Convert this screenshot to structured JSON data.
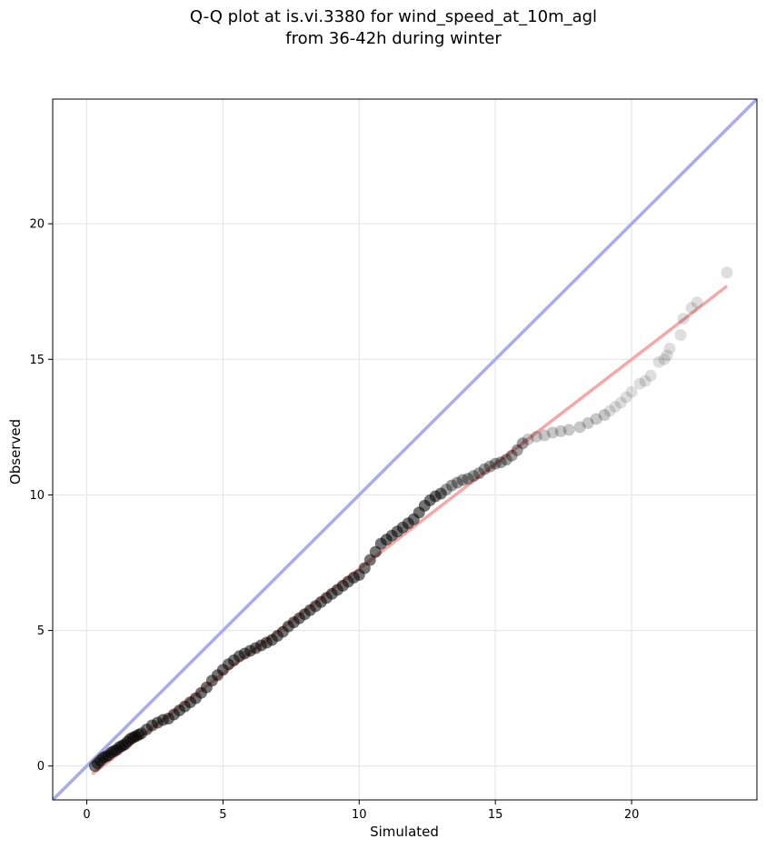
{
  "chart_data": {
    "type": "scatter",
    "title_line1": "Q-Q plot at is.vi.3380 for wind_speed_at_10m_agl",
    "title_line2": "from 36-42h during winter",
    "xlabel": "Simulated",
    "ylabel": "Observed",
    "xlim": [
      -1.25,
      24.6
    ],
    "ylim": [
      -1.25,
      24.6
    ],
    "xticks": [
      0,
      5,
      10,
      15,
      20
    ],
    "yticks": [
      0,
      5,
      10,
      15,
      20
    ],
    "grid": true,
    "identity_line": {
      "color": "#aaaaf2",
      "from": [
        -1.25,
        -1.25
      ],
      "to": [
        24.6,
        24.6
      ]
    },
    "fit_line": {
      "color": "#f5a8a8",
      "from": [
        0.2,
        -0.3
      ],
      "to": [
        23.5,
        17.7
      ]
    },
    "point_color": "#000000",
    "series": [
      {
        "x": [
          0.3,
          0.4,
          0.5,
          0.6,
          0.7,
          0.8,
          0.9,
          1.0,
          1.1,
          1.2,
          1.3,
          1.4,
          1.5,
          1.6,
          1.7,
          1.8,
          1.9,
          2.0,
          2.2,
          2.4,
          2.6,
          2.8,
          3.0,
          3.2,
          3.4,
          3.6,
          3.8,
          4.0,
          4.2,
          4.4,
          4.6,
          4.8,
          5.0,
          5.2,
          5.4,
          5.6,
          5.8,
          6.0,
          6.2,
          6.4,
          6.6,
          6.8,
          7.0,
          7.2,
          7.4,
          7.6,
          7.8,
          8.0,
          8.2,
          8.4,
          8.6,
          8.8,
          9.0,
          9.2,
          9.4,
          9.6,
          9.8,
          10.0,
          10.2,
          10.4,
          10.6,
          10.8,
          11.0,
          11.2,
          11.4,
          11.6,
          11.8,
          12.0,
          12.2,
          12.4,
          12.6,
          12.8,
          13.0,
          13.2,
          13.4,
          13.6,
          13.8,
          14.0,
          14.2,
          14.4,
          14.6,
          14.8,
          15.0,
          15.2,
          15.4,
          15.6,
          15.8,
          16.0,
          16.2,
          16.5,
          16.8,
          17.1,
          17.4,
          17.7,
          18.1,
          18.4,
          18.7,
          19.0,
          19.2,
          19.4,
          19.6,
          19.8,
          20.0,
          20.3,
          20.5,
          20.7,
          21.0,
          21.2,
          21.3,
          21.4,
          21.8,
          21.9,
          22.2,
          22.4,
          23.5
        ],
        "y": [
          0.0,
          0.1,
          0.2,
          0.3,
          0.35,
          0.4,
          0.5,
          0.55,
          0.6,
          0.7,
          0.75,
          0.8,
          0.9,
          1.0,
          1.05,
          1.1,
          1.15,
          1.2,
          1.35,
          1.5,
          1.6,
          1.7,
          1.75,
          1.9,
          2.05,
          2.2,
          2.35,
          2.5,
          2.7,
          2.9,
          3.15,
          3.35,
          3.55,
          3.75,
          3.9,
          4.05,
          4.15,
          4.25,
          4.35,
          4.45,
          4.55,
          4.65,
          4.8,
          4.95,
          5.15,
          5.3,
          5.45,
          5.6,
          5.75,
          5.9,
          6.05,
          6.2,
          6.35,
          6.5,
          6.65,
          6.8,
          6.95,
          7.05,
          7.3,
          7.6,
          7.9,
          8.2,
          8.35,
          8.5,
          8.65,
          8.8,
          8.95,
          9.1,
          9.35,
          9.6,
          9.8,
          9.95,
          10.05,
          10.2,
          10.35,
          10.45,
          10.55,
          10.6,
          10.7,
          10.8,
          10.95,
          11.05,
          11.15,
          11.2,
          11.3,
          11.45,
          11.65,
          11.9,
          12.05,
          12.15,
          12.2,
          12.3,
          12.35,
          12.4,
          12.5,
          12.65,
          12.8,
          12.95,
          13.1,
          13.25,
          13.4,
          13.6,
          13.8,
          14.1,
          14.2,
          14.4,
          14.9,
          15.0,
          15.15,
          15.4,
          15.9,
          16.5,
          16.9,
          17.1,
          18.2
        ]
      }
    ]
  }
}
